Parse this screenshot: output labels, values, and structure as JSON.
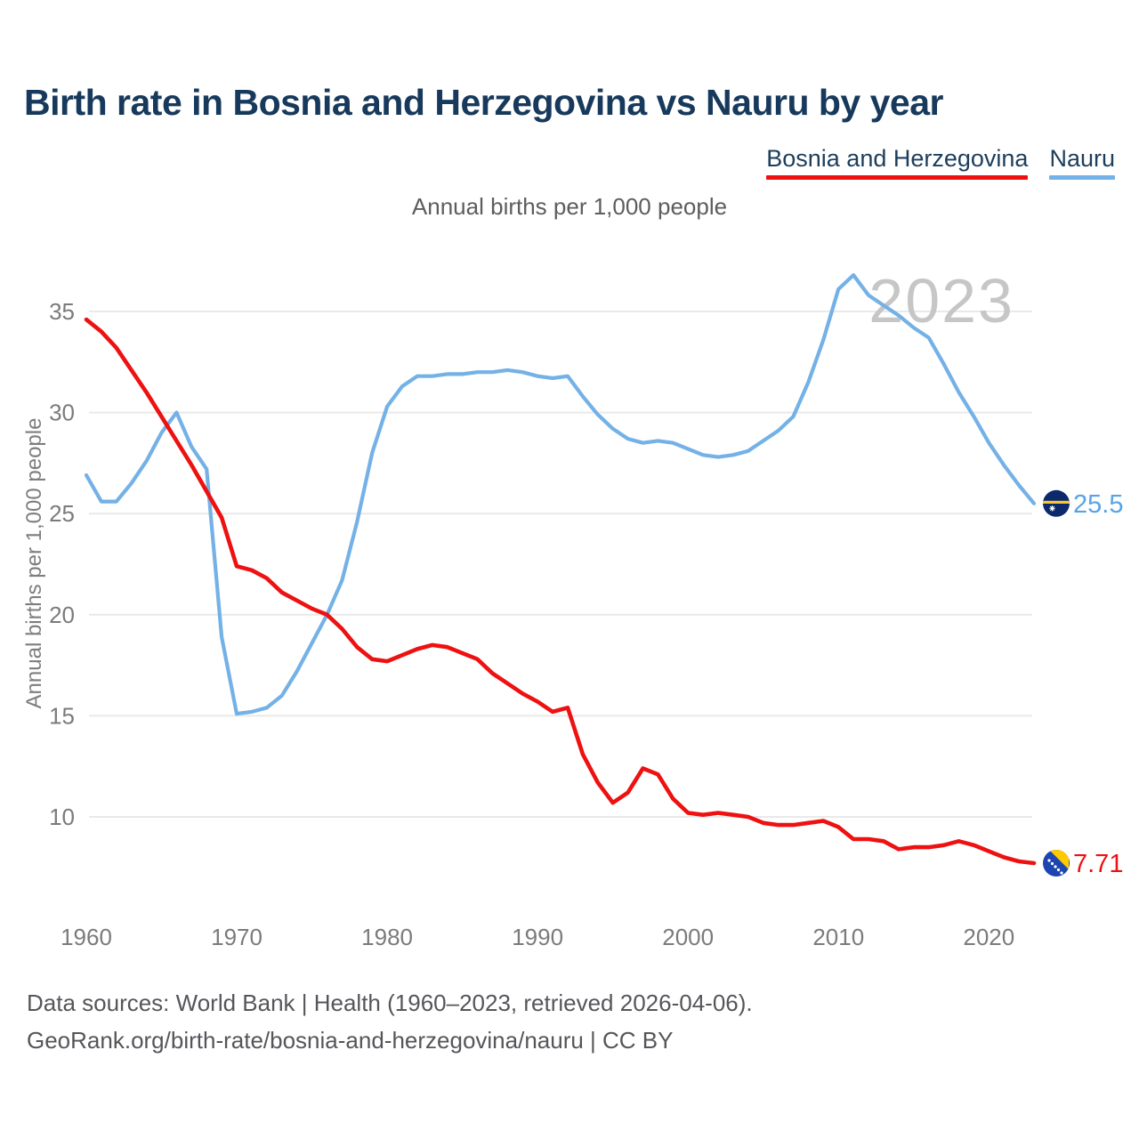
{
  "header": {
    "title": "Birth rate in Bosnia and Herzegovina vs Nauru by year",
    "subtitle": "Annual births per 1,000 people"
  },
  "legend": [
    {
      "label": "Bosnia and Herzegovina",
      "color": "#ee1111"
    },
    {
      "label": "Nauru",
      "color": "#74b1e6"
    }
  ],
  "watermark": "2023",
  "footer": {
    "line1": "Data sources: World Bank | Health (1960–2023, retrieved 2026-04-06).",
    "line2": "GeoRank.org/birth-rate/bosnia-and-herzegovina/nauru | CC BY"
  },
  "chart_data": {
    "type": "line",
    "title": "Birth rate in Bosnia and Herzegovina vs Nauru by year",
    "subtitle": "Annual births per 1,000 people",
    "ylabel": "Annual births per 1,000 people",
    "xlabel": "",
    "grid": "horizontal",
    "legend_position": "top-right",
    "ylim": [
      7,
      37.5
    ],
    "y_ticks": [
      10,
      15,
      20,
      25,
      30,
      35
    ],
    "x_ticks": [
      1960,
      1970,
      1980,
      1990,
      2000,
      2010,
      2020
    ],
    "x": [
      1960,
      1961,
      1962,
      1963,
      1964,
      1965,
      1966,
      1967,
      1968,
      1969,
      1970,
      1971,
      1972,
      1973,
      1974,
      1975,
      1976,
      1977,
      1978,
      1979,
      1980,
      1981,
      1982,
      1983,
      1984,
      1985,
      1986,
      1987,
      1988,
      1989,
      1990,
      1991,
      1992,
      1993,
      1994,
      1995,
      1996,
      1997,
      1998,
      1999,
      2000,
      2001,
      2002,
      2003,
      2004,
      2005,
      2006,
      2007,
      2008,
      2009,
      2010,
      2011,
      2012,
      2013,
      2014,
      2015,
      2016,
      2017,
      2018,
      2019,
      2020,
      2021,
      2022,
      2023
    ],
    "series": [
      {
        "name": "Bosnia and Herzegovina",
        "color": "#ee1111",
        "label_color": "#ee1111",
        "flag": "bosnia",
        "end_label": "7.71",
        "values": [
          34.6,
          34.0,
          33.2,
          32.1,
          31.0,
          29.8,
          28.6,
          27.4,
          26.1,
          24.8,
          22.4,
          22.2,
          21.8,
          21.1,
          20.7,
          20.3,
          20.0,
          19.3,
          18.4,
          17.8,
          17.7,
          18.0,
          18.3,
          18.5,
          18.4,
          18.1,
          17.8,
          17.1,
          16.6,
          16.1,
          15.7,
          15.2,
          15.4,
          13.1,
          11.7,
          10.7,
          11.2,
          12.4,
          12.1,
          10.9,
          10.2,
          10.1,
          10.2,
          10.1,
          10.0,
          9.7,
          9.6,
          9.6,
          9.7,
          9.8,
          9.5,
          8.9,
          8.9,
          8.8,
          8.4,
          8.5,
          8.5,
          8.6,
          8.8,
          8.6,
          8.3,
          8.0,
          7.8,
          7.71
        ]
      },
      {
        "name": "Nauru",
        "color": "#74b1e6",
        "label_color": "#58a3e8",
        "flag": "nauru",
        "end_label": "25.5",
        "values": [
          26.9,
          25.6,
          25.6,
          26.5,
          27.6,
          29.0,
          30.0,
          28.3,
          27.2,
          18.9,
          15.1,
          15.2,
          15.4,
          16.0,
          17.2,
          18.6,
          20.0,
          21.7,
          24.6,
          28.0,
          30.3,
          31.3,
          31.8,
          31.8,
          31.9,
          31.9,
          32.0,
          32.0,
          32.1,
          32.0,
          31.8,
          31.7,
          31.8,
          30.8,
          29.9,
          29.2,
          28.7,
          28.5,
          28.6,
          28.5,
          28.2,
          27.9,
          27.8,
          27.9,
          28.1,
          28.6,
          29.1,
          29.8,
          31.5,
          33.6,
          36.1,
          36.8,
          35.8,
          35.3,
          34.8,
          34.2,
          33.7,
          32.4,
          31.0,
          29.8,
          28.5,
          27.4,
          26.4,
          25.5
        ]
      }
    ]
  }
}
